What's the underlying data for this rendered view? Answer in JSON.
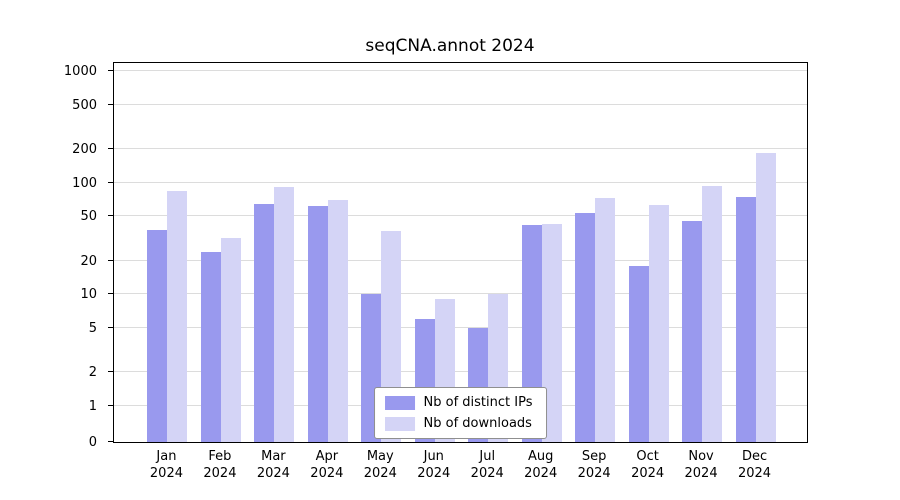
{
  "chart_data": {
    "type": "bar",
    "title": "seqCNA.annot 2024",
    "categories": [
      "Jan\n2024",
      "Feb\n2024",
      "Mar\n2024",
      "Apr\n2024",
      "May\n2024",
      "Jun\n2024",
      "Jul\n2024",
      "Aug\n2024",
      "Sep\n2024",
      "Oct\n2024",
      "Nov\n2024",
      "Dec\n2024"
    ],
    "series": [
      {
        "name": "Nb of distinct IPs",
        "color": "#9999ee",
        "values": [
          38,
          24,
          65,
          62,
          10,
          6,
          5,
          42,
          53,
          18,
          45,
          75
        ]
      },
      {
        "name": "Nb of downloads",
        "color": "#d4d4f6",
        "values": [
          85,
          32,
          92,
          70,
          37,
          9,
          10,
          43,
          73,
          63,
          93,
          185
        ]
      }
    ],
    "yticks": [
      0,
      1,
      2,
      5,
      10,
      20,
      50,
      100,
      200,
      500,
      1000
    ],
    "yscale": "log",
    "ylim": [
      0,
      1000
    ],
    "xlabel": "",
    "ylabel": "",
    "grid": true,
    "legend_position": "lower center"
  }
}
